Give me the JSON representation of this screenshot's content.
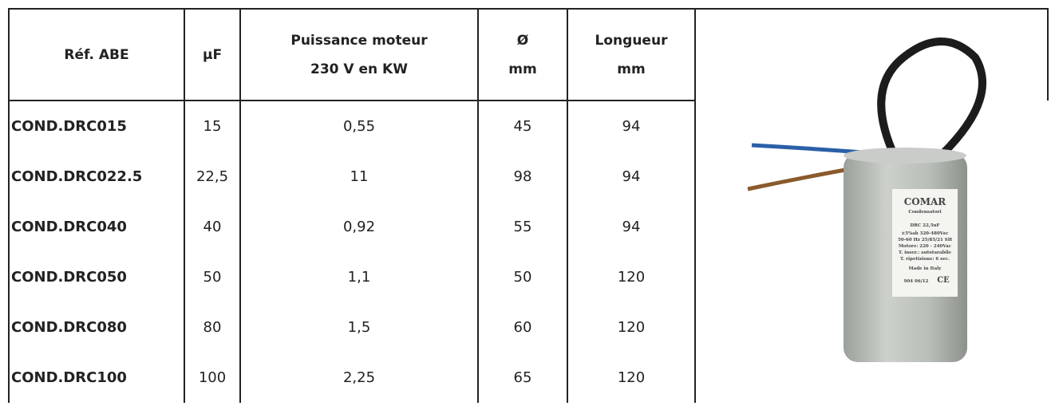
{
  "table": {
    "header": [
      [
        "Réf. ABE"
      ],
      [
        "µF"
      ],
      [
        "Puissance  moteur",
        "230 V en KW"
      ],
      [
        "Ø",
        "mm"
      ],
      [
        "Longueur",
        "mm"
      ]
    ],
    "rows": [
      [
        "COND.DRC015",
        "15",
        "0,55",
        "45",
        "94"
      ],
      [
        "COND.DRC022.5",
        "22,5",
        "11",
        "98",
        "94"
      ],
      [
        "COND.DRC040",
        "40",
        "0,92",
        "55",
        "94"
      ],
      [
        "COND.DRC050",
        "50",
        "1,1",
        "50",
        "120"
      ],
      [
        "COND.DRC080",
        "80",
        "1,5",
        "60",
        "120"
      ],
      [
        "COND.DRC100",
        "100",
        "2,25",
        "65",
        "120"
      ]
    ]
  },
  "image": {
    "label": [
      "COMAR",
      "Condensatori",
      "DRC 22,5uF",
      "±5%ab 320-480Vac",
      "50-60 Hz 25/85/21 SH",
      "Motore: 220 - 240Vac",
      "T. inser.: autotarabile",
      "T. ripetizione: 6 sec.",
      "Made in Italy",
      "904 06/12",
      "CE"
    ]
  }
}
